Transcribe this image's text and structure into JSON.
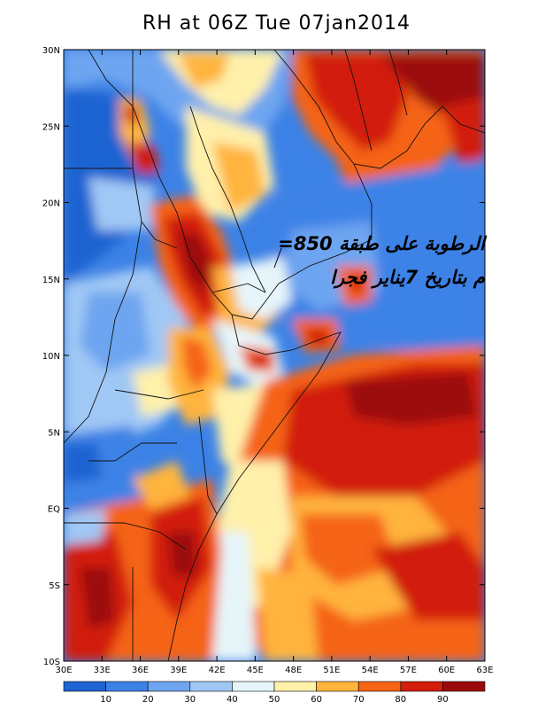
{
  "title": "RH at 06Z Tue 07jan2014",
  "annotation": {
    "line1": "=الرطوبة على طبقة 850",
    "line2": "م بتاريخ 7يناير فجرا"
  },
  "chart_data": {
    "type": "heatmap",
    "variable": "RH",
    "lon_range": [
      30,
      63
    ],
    "lat_range": [
      -10,
      30
    ],
    "x_ticks": [
      "30E",
      "33E",
      "36E",
      "39E",
      "42E",
      "45E",
      "48E",
      "51E",
      "54E",
      "57E",
      "60E",
      "63E"
    ],
    "y_ticks": [
      "10S",
      "5S",
      "EQ",
      "5N",
      "10N",
      "15N",
      "20N",
      "25N",
      "30N"
    ],
    "colorbar": {
      "labels": [
        "10",
        "20",
        "30",
        "40",
        "50",
        "60",
        "70",
        "80",
        "90"
      ],
      "colors": [
        "#1e64d2",
        "#3c82e6",
        "#6ea5f0",
        "#a0c8f5",
        "#e6f5fa",
        "#fff0aa",
        "#ffb43c",
        "#f56414",
        "#d21e0a",
        "#9b0a0a"
      ]
    }
  }
}
